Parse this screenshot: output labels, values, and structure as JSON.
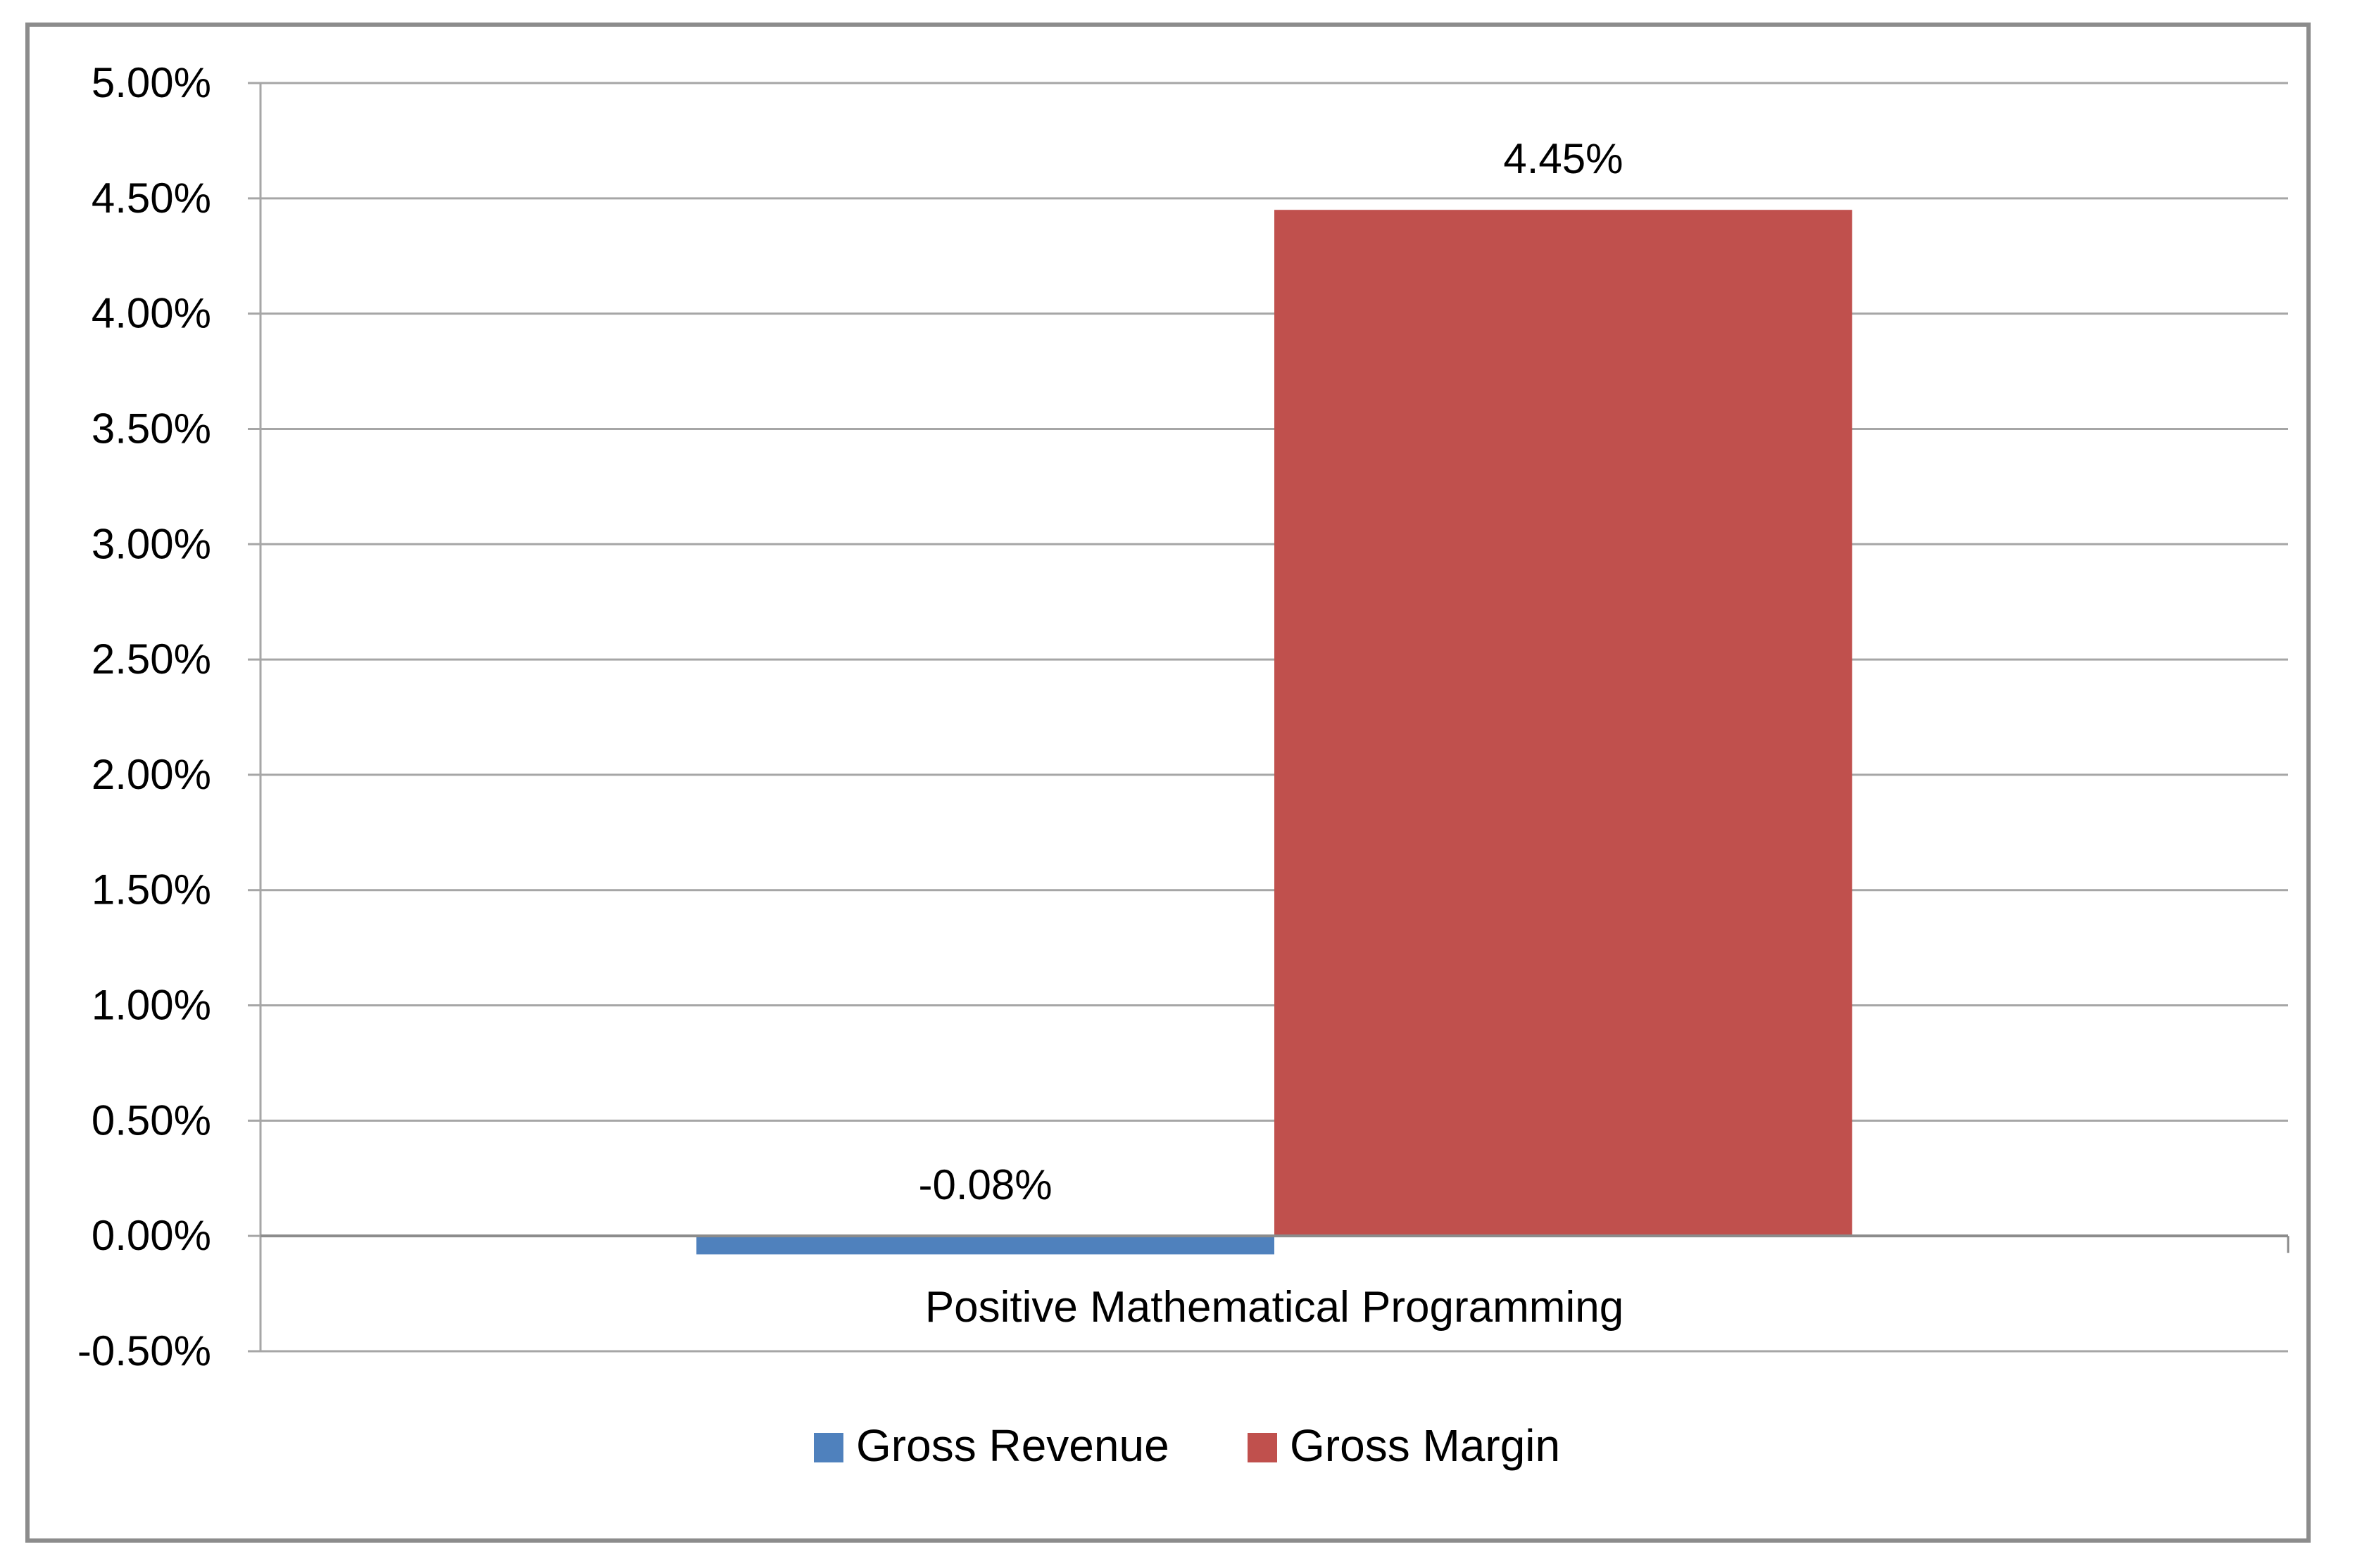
{
  "chart_data": {
    "type": "bar",
    "categories": [
      "Positive Mathematical Programming"
    ],
    "series": [
      {
        "name": "Gross Revenue",
        "values": [
          -0.08
        ],
        "color": "#4f81bd",
        "label": "-0.08%"
      },
      {
        "name": "Gross Margin",
        "values": [
          4.45
        ],
        "color": "#c0504d",
        "label": "4.45%"
      }
    ],
    "ylim": [
      -0.5,
      5.0
    ],
    "ytick_step": 0.5,
    "ytick_labels": [
      "-0.50%",
      "0.00%",
      "0.50%",
      "1.00%",
      "1.50%",
      "2.00%",
      "2.50%",
      "3.00%",
      "3.50%",
      "4.00%",
      "4.50%",
      "5.00%"
    ],
    "y_unit": "%",
    "grid": true,
    "legend_position": "bottom",
    "title": "",
    "xlabel": "",
    "ylabel": ""
  }
}
